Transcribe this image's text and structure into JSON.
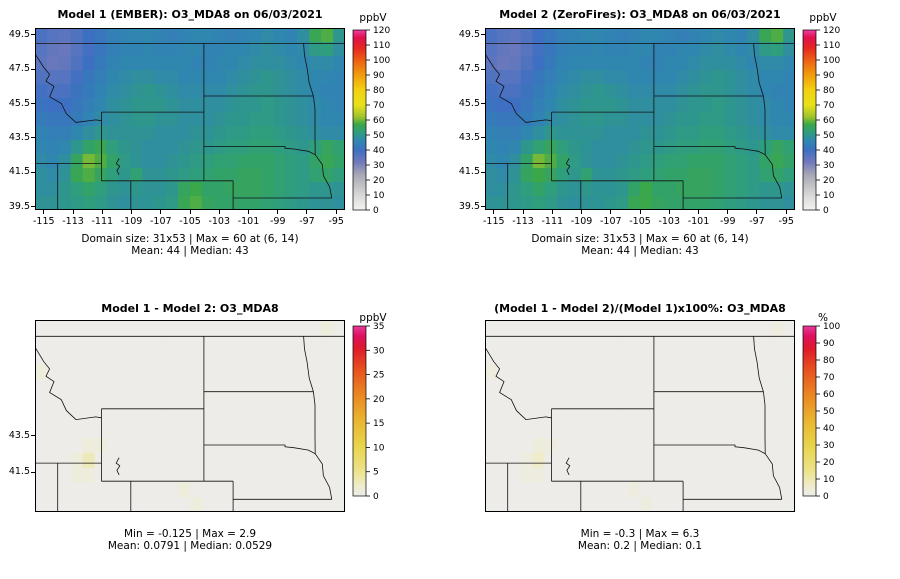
{
  "figure": {
    "background": "#ffffff"
  },
  "color_scales": {
    "conc": {
      "stops": [
        [
          0,
          "#f2f2f0"
        ],
        [
          8,
          "#dedede"
        ],
        [
          16,
          "#c3c3c6"
        ],
        [
          24,
          "#a4a4b4"
        ],
        [
          32,
          "#6f79bb"
        ],
        [
          40,
          "#3d6fc2"
        ],
        [
          46,
          "#2f87b0"
        ],
        [
          52,
          "#2f9e7c"
        ],
        [
          57,
          "#3aa84a"
        ],
        [
          62,
          "#9ec32c"
        ],
        [
          70,
          "#e8e01c"
        ],
        [
          80,
          "#f2d110"
        ],
        [
          90,
          "#f19c0e"
        ],
        [
          100,
          "#ed5f15"
        ],
        [
          108,
          "#e6271f"
        ],
        [
          115,
          "#df1050"
        ],
        [
          120,
          "#ee3fa5"
        ]
      ]
    },
    "warm": {
      "stops": [
        [
          0,
          "#edece8"
        ],
        [
          0.06,
          "#efeccb"
        ],
        [
          0.15,
          "#ece289"
        ],
        [
          0.3,
          "#e8d44a"
        ],
        [
          0.45,
          "#eab32f"
        ],
        [
          0.6,
          "#ea8523"
        ],
        [
          0.75,
          "#e74f1f"
        ],
        [
          0.87,
          "#e0192c"
        ],
        [
          0.94,
          "#dc1060"
        ],
        [
          1,
          "#e83a9a"
        ]
      ]
    }
  },
  "chart_data": [
    {
      "id": "model1",
      "type": "heatmap",
      "title": "Model 1 (EMBER): O3_MDA8 on 06/03/2021",
      "unit": "ppbV",
      "colorbar": {
        "min": 0,
        "max": 120,
        "ticks": [
          0,
          10,
          20,
          30,
          40,
          50,
          60,
          70,
          80,
          90,
          100,
          110,
          120
        ],
        "scale": "conc",
        "position": "right"
      },
      "axes": {
        "x_ticks": [
          -115,
          -113,
          -111,
          -109,
          -107,
          -105,
          -103,
          -101,
          -99,
          -97,
          -95
        ],
        "y_ticks": [
          49.5,
          47.5,
          45.5,
          43.5,
          41.5,
          39.5
        ]
      },
      "extent": {
        "lon_min": -115.6,
        "lon_max": -94.4,
        "lat_min": 39.3,
        "lat_max": 49.9
      },
      "stats_line1": "Domain size: 31x53 | Max = 60 at (6, 14)",
      "stats_line2": "Mean: 44 | Median: 43",
      "stats": {
        "domain_size": "31x53",
        "max": 60,
        "max_at": "(6, 14)",
        "mean": 44,
        "median": 43
      },
      "grid": [
        [
          38,
          36,
          35,
          37,
          40,
          42,
          44,
          45,
          46,
          46,
          45,
          44,
          45,
          46,
          46,
          45,
          44,
          45,
          46,
          47,
          46,
          45,
          48,
          56,
          58,
          50
        ],
        [
          36,
          34,
          33,
          36,
          39,
          42,
          44,
          45,
          45,
          46,
          45,
          45,
          46,
          46,
          45,
          45,
          46,
          46,
          47,
          48,
          47,
          46,
          47,
          51,
          52,
          48
        ],
        [
          35,
          33,
          34,
          37,
          40,
          43,
          45,
          46,
          46,
          46,
          46,
          46,
          46,
          45,
          45,
          46,
          46,
          47,
          48,
          48,
          48,
          47,
          46,
          47,
          47,
          46
        ],
        [
          37,
          36,
          36,
          39,
          42,
          44,
          46,
          47,
          48,
          48,
          47,
          47,
          46,
          46,
          46,
          46,
          47,
          48,
          49,
          50,
          49,
          48,
          47,
          46,
          46,
          45
        ],
        [
          39,
          38,
          38,
          41,
          43,
          45,
          47,
          48,
          49,
          50,
          49,
          48,
          47,
          47,
          47,
          47,
          48,
          49,
          50,
          50,
          49,
          48,
          47,
          46,
          45,
          45
        ],
        [
          41,
          40,
          40,
          42,
          44,
          46,
          48,
          49,
          50,
          50,
          50,
          49,
          48,
          48,
          48,
          48,
          49,
          50,
          50,
          51,
          50,
          49,
          48,
          47,
          46,
          45
        ],
        [
          43,
          42,
          42,
          43,
          45,
          47,
          48,
          49,
          50,
          50,
          49,
          49,
          48,
          48,
          48,
          49,
          50,
          50,
          51,
          51,
          50,
          49,
          48,
          47,
          46,
          46
        ],
        [
          45,
          44,
          44,
          46,
          48,
          50,
          49,
          49,
          49,
          49,
          48,
          48,
          48,
          49,
          49,
          50,
          51,
          51,
          52,
          52,
          51,
          50,
          49,
          48,
          47,
          47
        ],
        [
          46,
          45,
          46,
          50,
          54,
          56,
          52,
          50,
          49,
          48,
          48,
          48,
          49,
          50,
          50,
          51,
          52,
          52,
          53,
          53,
          52,
          51,
          50,
          52,
          55,
          53
        ],
        [
          47,
          46,
          48,
          55,
          60,
          58,
          54,
          51,
          49,
          48,
          48,
          49,
          50,
          51,
          52,
          53,
          53,
          54,
          54,
          54,
          53,
          52,
          51,
          54,
          56,
          54
        ],
        [
          48,
          47,
          49,
          56,
          58,
          55,
          52,
          50,
          53,
          49,
          49,
          50,
          51,
          52,
          53,
          54,
          54,
          55,
          55,
          54,
          53,
          52,
          51,
          53,
          54,
          52
        ],
        [
          48,
          48,
          50,
          52,
          54,
          52,
          50,
          49,
          50,
          49,
          49,
          50,
          55,
          57,
          54,
          54,
          55,
          55,
          55,
          54,
          53,
          52,
          51,
          50,
          50,
          49
        ],
        [
          49,
          49,
          50,
          51,
          52,
          51,
          49,
          48,
          49,
          49,
          50,
          51,
          56,
          58,
          55,
          54,
          54,
          54,
          54,
          53,
          52,
          51,
          50,
          49,
          49,
          48
        ]
      ]
    },
    {
      "id": "model2",
      "type": "heatmap",
      "title": "Model 2 (ZeroFires): O3_MDA8 on 06/03/2021",
      "unit": "ppbV",
      "colorbar": {
        "min": 0,
        "max": 120,
        "ticks": [
          0,
          10,
          20,
          30,
          40,
          50,
          60,
          70,
          80,
          90,
          100,
          110,
          120
        ],
        "scale": "conc",
        "position": "right"
      },
      "axes": {
        "x_ticks": [
          -115,
          -113,
          -111,
          -109,
          -107,
          -105,
          -103,
          -101,
          -99,
          -97,
          -95
        ],
        "y_ticks": [
          49.5,
          47.5,
          45.5,
          43.5,
          41.5,
          39.5
        ]
      },
      "extent": {
        "lon_min": -115.6,
        "lon_max": -94.4,
        "lat_min": 39.3,
        "lat_max": 49.9
      },
      "stats_line1": "Domain size: 31x53 | Max = 60 at (6, 14)",
      "stats_line2": "Mean: 44 | Median: 43",
      "stats": {
        "domain_size": "31x53",
        "max": 60,
        "max_at": "(6, 14)",
        "mean": 44,
        "median": 43
      },
      "grid": [
        [
          38,
          36,
          35,
          37,
          40,
          42,
          44,
          45,
          46,
          46,
          45,
          44,
          45,
          46,
          46,
          45,
          44,
          45,
          46,
          47,
          46,
          45,
          48,
          56,
          58,
          50
        ],
        [
          36,
          34,
          33,
          36,
          39,
          42,
          44,
          45,
          45,
          46,
          45,
          45,
          46,
          46,
          45,
          45,
          46,
          46,
          47,
          48,
          47,
          46,
          47,
          51,
          52,
          48
        ],
        [
          35,
          33,
          34,
          37,
          40,
          43,
          45,
          46,
          46,
          46,
          46,
          46,
          46,
          45,
          45,
          46,
          46,
          47,
          48,
          48,
          48,
          47,
          46,
          47,
          47,
          46
        ],
        [
          37,
          36,
          36,
          39,
          42,
          44,
          46,
          47,
          48,
          48,
          47,
          47,
          46,
          46,
          46,
          46,
          47,
          48,
          49,
          50,
          49,
          48,
          47,
          46,
          46,
          45
        ],
        [
          39,
          38,
          38,
          41,
          43,
          45,
          47,
          48,
          49,
          50,
          49,
          48,
          47,
          47,
          47,
          47,
          48,
          49,
          50,
          50,
          49,
          48,
          47,
          46,
          45,
          45
        ],
        [
          41,
          40,
          40,
          42,
          44,
          46,
          48,
          49,
          50,
          50,
          50,
          49,
          48,
          48,
          48,
          48,
          49,
          50,
          50,
          51,
          50,
          49,
          48,
          47,
          46,
          45
        ],
        [
          43,
          42,
          42,
          43,
          45,
          47,
          48,
          49,
          50,
          50,
          49,
          49,
          48,
          48,
          48,
          49,
          50,
          50,
          51,
          51,
          50,
          49,
          48,
          47,
          46,
          46
        ],
        [
          45,
          44,
          44,
          46,
          48,
          50,
          49,
          49,
          49,
          49,
          48,
          48,
          48,
          49,
          49,
          50,
          51,
          51,
          52,
          52,
          51,
          50,
          49,
          48,
          47,
          47
        ],
        [
          46,
          45,
          46,
          50,
          53,
          55,
          52,
          50,
          49,
          48,
          48,
          48,
          49,
          50,
          50,
          51,
          52,
          52,
          53,
          53,
          52,
          51,
          50,
          52,
          55,
          53
        ],
        [
          47,
          46,
          48,
          54,
          60,
          58,
          54,
          51,
          49,
          48,
          48,
          49,
          50,
          51,
          52,
          53,
          53,
          54,
          54,
          54,
          53,
          52,
          51,
          54,
          56,
          54
        ],
        [
          48,
          47,
          49,
          55,
          57,
          55,
          52,
          50,
          53,
          49,
          49,
          50,
          51,
          52,
          53,
          54,
          54,
          55,
          55,
          54,
          53,
          52,
          51,
          53,
          54,
          52
        ],
        [
          48,
          48,
          50,
          52,
          54,
          52,
          50,
          49,
          50,
          49,
          49,
          50,
          54,
          57,
          54,
          54,
          55,
          55,
          55,
          54,
          53,
          52,
          51,
          50,
          50,
          49
        ],
        [
          49,
          49,
          50,
          51,
          52,
          51,
          49,
          48,
          49,
          49,
          50,
          51,
          56,
          57,
          55,
          54,
          54,
          54,
          54,
          53,
          52,
          51,
          50,
          49,
          49,
          48
        ]
      ]
    },
    {
      "id": "difference",
      "type": "heatmap",
      "title": "Model 1 - Model 2: O3_MDA8",
      "unit": "ppbV",
      "colorbar": {
        "min": 0,
        "max": 35,
        "ticks": [
          0,
          5,
          10,
          15,
          20,
          25,
          30,
          35
        ],
        "scale": "warm",
        "position": "right"
      },
      "axes": {
        "x_ticks": [],
        "y_ticks": [
          43.5,
          41.5
        ]
      },
      "extent": {
        "lon_min": -115.6,
        "lon_max": -94.4,
        "lat_min": 39.3,
        "lat_max": 49.9
      },
      "stats_line1": "Min = -0.125 | Max = 2.9",
      "stats_line2": "Mean: 0.0791 | Median: 0.0529",
      "stats": {
        "min": -0.125,
        "max": 2.9,
        "mean": 0.0791,
        "median": 0.0529
      },
      "grid_compact": {
        "rows": 13,
        "cols": 26,
        "base": 0,
        "spots": [
          [
            8,
            4,
            1
          ],
          [
            8,
            5,
            1
          ],
          [
            9,
            3,
            1
          ],
          [
            9,
            4,
            3
          ],
          [
            10,
            3,
            1
          ],
          [
            10,
            4,
            1
          ],
          [
            11,
            12,
            1
          ],
          [
            12,
            13,
            1
          ],
          [
            3,
            0,
            1
          ],
          [
            0,
            24,
            1
          ]
        ]
      }
    },
    {
      "id": "percent-difference",
      "type": "heatmap",
      "title": "(Model 1 - Model 2)/(Model 1)x100%: O3_MDA8",
      "unit": "%",
      "colorbar": {
        "min": 0,
        "max": 100,
        "ticks": [
          0,
          10,
          20,
          30,
          40,
          50,
          60,
          70,
          80,
          90,
          100
        ],
        "scale": "warm",
        "position": "right"
      },
      "axes": {
        "x_ticks": [],
        "y_ticks": []
      },
      "extent": {
        "lon_min": -115.6,
        "lon_max": -94.4,
        "lat_min": 39.3,
        "lat_max": 49.9
      },
      "stats_line1": "Min = -0.3 | Max = 6.3",
      "stats_line2": "Mean: 0.2 | Median: 0.1",
      "stats": {
        "min": -0.3,
        "max": 6.3,
        "mean": 0.2,
        "median": 0.1
      },
      "grid_compact": {
        "rows": 13,
        "cols": 26,
        "base": 0,
        "spots": [
          [
            8,
            4,
            3
          ],
          [
            8,
            5,
            2
          ],
          [
            9,
            3,
            2
          ],
          [
            9,
            4,
            6
          ],
          [
            10,
            3,
            2
          ],
          [
            10,
            4,
            2
          ],
          [
            11,
            12,
            2
          ],
          [
            12,
            13,
            2
          ],
          [
            3,
            0,
            2
          ],
          [
            0,
            24,
            2
          ]
        ]
      }
    }
  ]
}
